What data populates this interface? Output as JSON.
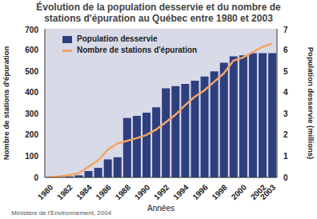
{
  "chart_data": {
    "type": "bar",
    "title": "Évolution de la population desservie et du nombre de stations d'épuration au Québec entre 1980 et 2003",
    "x_label": "Années",
    "y_label": "Nombre de stations d'épuration",
    "y2_label": "Population desservie (millions)",
    "source": "Ministère de l'Environnement, 2004",
    "categories": [
      "1980",
      null,
      "1982",
      null,
      "1984",
      null,
      "1986",
      null,
      "1988",
      null,
      "1990",
      null,
      "1992",
      null,
      "1994",
      null,
      "1996",
      null,
      "1998",
      null,
      "2000",
      null,
      "2002",
      "2003"
    ],
    "series": [
      {
        "name": "Population desservie",
        "type": "bar",
        "axis": "y2",
        "color": "#2e3f7f",
        "values": [
          0.02,
          0.03,
          0.05,
          0.1,
          0.3,
          0.45,
          0.85,
          0.95,
          2.8,
          2.9,
          3.05,
          3.3,
          4.2,
          4.3,
          4.4,
          4.55,
          4.75,
          5.0,
          5.4,
          5.7,
          5.75,
          5.85,
          5.85,
          5.85
        ]
      },
      {
        "name": "Nombre de stations d'épuration",
        "type": "line",
        "color": "#f4a460",
        "marker": "none",
        "values": [
          2,
          5,
          10,
          20,
          50,
          80,
          130,
          160,
          172,
          185,
          200,
          225,
          260,
          295,
          340,
          380,
          410,
          450,
          490,
          550,
          565,
          590,
          615,
          630
        ]
      }
    ],
    "ylim": [
      0,
      700
    ],
    "yticks": [
      0,
      100,
      200,
      300,
      400,
      500,
      600,
      700
    ],
    "y2lim": [
      0,
      7
    ],
    "y2ticks": [
      0,
      1,
      2,
      3,
      4,
      5,
      6,
      7
    ],
    "grid": false,
    "legend": "upper left"
  }
}
